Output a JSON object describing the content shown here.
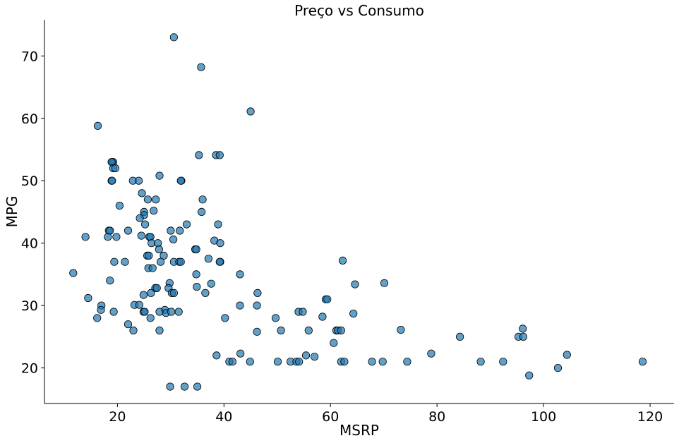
{
  "chart_data": {
    "type": "scatter",
    "title": "Preço vs Consumo",
    "xlabel": "MSRP",
    "ylabel": "MPG",
    "xlim": [
      6.3,
      124.5
    ],
    "ylim": [
      14.3,
      75.8
    ],
    "xticks": [
      20,
      40,
      60,
      80,
      100,
      120
    ],
    "yticks": [
      20,
      30,
      40,
      50,
      60,
      70
    ],
    "grid": false,
    "point_color": "#1f77b4",
    "points": [
      [
        30.6,
        73
      ],
      [
        35.7,
        68.2
      ],
      [
        45.0,
        61.1
      ],
      [
        16.3,
        58.8
      ],
      [
        35.3,
        54.1
      ],
      [
        38.5,
        54.1
      ],
      [
        39.2,
        54.1
      ],
      [
        19.0,
        53
      ],
      [
        19.2,
        53
      ],
      [
        18.9,
        53
      ],
      [
        19.2,
        52
      ],
      [
        19.6,
        52
      ],
      [
        27.9,
        50.8
      ],
      [
        18.9,
        50
      ],
      [
        19.0,
        50
      ],
      [
        22.9,
        50
      ],
      [
        24.0,
        50
      ],
      [
        32.0,
        50
      ],
      [
        31.9,
        50
      ],
      [
        24.6,
        48
      ],
      [
        36.0,
        47
      ],
      [
        25.7,
        47
      ],
      [
        27.2,
        47
      ],
      [
        20.4,
        46
      ],
      [
        26.8,
        45.2
      ],
      [
        25.0,
        45
      ],
      [
        25.0,
        44.5
      ],
      [
        35.8,
        45
      ],
      [
        24.2,
        44
      ],
      [
        38.9,
        43
      ],
      [
        33.0,
        43
      ],
      [
        25.2,
        43
      ],
      [
        14.0,
        41
      ],
      [
        18.4,
        42
      ],
      [
        18.6,
        42
      ],
      [
        18.2,
        41
      ],
      [
        22.0,
        42
      ],
      [
        19.8,
        41
      ],
      [
        24.5,
        41.2
      ],
      [
        26.0,
        41
      ],
      [
        26.2,
        41
      ],
      [
        30.0,
        42
      ],
      [
        31.7,
        42
      ],
      [
        30.5,
        40.6
      ],
      [
        26.4,
        40
      ],
      [
        27.6,
        40
      ],
      [
        38.2,
        40.4
      ],
      [
        39.3,
        40
      ],
      [
        27.8,
        39
      ],
      [
        34.6,
        39
      ],
      [
        34.8,
        39
      ],
      [
        28.7,
        38
      ],
      [
        25.6,
        38
      ],
      [
        25.9,
        38
      ],
      [
        19.4,
        37
      ],
      [
        21.4,
        37
      ],
      [
        28.1,
        37
      ],
      [
        30.6,
        37
      ],
      [
        31.6,
        37
      ],
      [
        31.9,
        37
      ],
      [
        39.3,
        37
      ],
      [
        39.2,
        37
      ],
      [
        37.1,
        37.5
      ],
      [
        25.8,
        36
      ],
      [
        26.6,
        36
      ],
      [
        11.7,
        35.2
      ],
      [
        18.6,
        34
      ],
      [
        34.8,
        35
      ],
      [
        43.0,
        35
      ],
      [
        29.8,
        33.6
      ],
      [
        37.6,
        33.5
      ],
      [
        29.6,
        32.8
      ],
      [
        27.1,
        32.8
      ],
      [
        27.4,
        32.8
      ],
      [
        34.9,
        33
      ],
      [
        26.3,
        32
      ],
      [
        30.2,
        32
      ],
      [
        30.6,
        32
      ],
      [
        36.5,
        32
      ],
      [
        24.9,
        31.7
      ],
      [
        14.5,
        31.2
      ],
      [
        23.2,
        30.1
      ],
      [
        24.1,
        30.1
      ],
      [
        17.0,
        30
      ],
      [
        16.9,
        29.3
      ],
      [
        19.3,
        29
      ],
      [
        24.9,
        29
      ],
      [
        25.1,
        29
      ],
      [
        28.9,
        29.3
      ],
      [
        29.1,
        28.8
      ],
      [
        30.1,
        29
      ],
      [
        31.5,
        29
      ],
      [
        27.9,
        29
      ],
      [
        43.0,
        30
      ],
      [
        46.2,
        30
      ],
      [
        46.3,
        32
      ],
      [
        16.2,
        28
      ],
      [
        26.2,
        28
      ],
      [
        40.2,
        28
      ],
      [
        22.0,
        27
      ],
      [
        23.0,
        26
      ],
      [
        27.9,
        26
      ],
      [
        46.2,
        25.8
      ],
      [
        38.6,
        22
      ],
      [
        43.1,
        22.3
      ],
      [
        41.0,
        21
      ],
      [
        41.6,
        21
      ],
      [
        44.9,
        21
      ],
      [
        50.1,
        21
      ],
      [
        52.5,
        21
      ],
      [
        53.6,
        21
      ],
      [
        54.1,
        21
      ],
      [
        54.0,
        29
      ],
      [
        54.8,
        29
      ],
      [
        49.7,
        28
      ],
      [
        50.7,
        26
      ],
      [
        55.4,
        22
      ],
      [
        55.9,
        26
      ],
      [
        57.0,
        21.8
      ],
      [
        58.5,
        28.2
      ],
      [
        59.1,
        31
      ],
      [
        59.4,
        31
      ],
      [
        60.6,
        24
      ],
      [
        61.1,
        26
      ],
      [
        61.4,
        26
      ],
      [
        62.0,
        26
      ],
      [
        62.0,
        21
      ],
      [
        62.6,
        21
      ],
      [
        62.3,
        37.2
      ],
      [
        64.3,
        28.7
      ],
      [
        64.6,
        33.4
      ],
      [
        67.8,
        21
      ],
      [
        69.8,
        21
      ],
      [
        70.1,
        33.6
      ],
      [
        73.2,
        26.1
      ],
      [
        74.4,
        21
      ],
      [
        78.9,
        22.3
      ],
      [
        84.3,
        25
      ],
      [
        88.2,
        21
      ],
      [
        92.4,
        21
      ],
      [
        95.3,
        25
      ],
      [
        96.1,
        26.3
      ],
      [
        96.2,
        25
      ],
      [
        97.3,
        18.8
      ],
      [
        102.7,
        20
      ],
      [
        104.4,
        22.1
      ],
      [
        118.6,
        21
      ],
      [
        29.9,
        17
      ],
      [
        32.6,
        17
      ],
      [
        35.0,
        17
      ]
    ]
  }
}
